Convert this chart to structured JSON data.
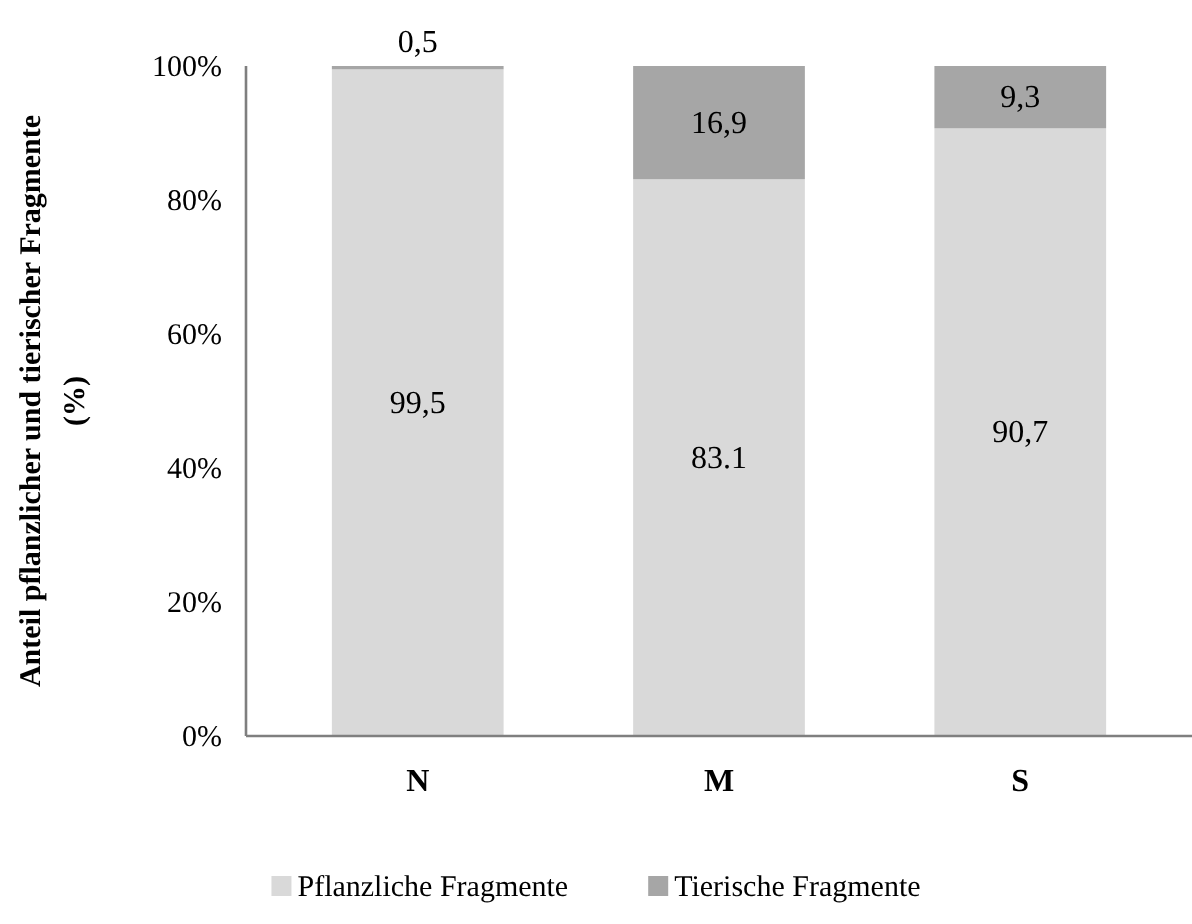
{
  "chart_data": {
    "type": "bar",
    "stacked": true,
    "ylabel": "Anteil pflanzlicher und tierischer Fragmente (%)",
    "categories": [
      "N",
      "M",
      "S"
    ],
    "ylim": [
      0,
      100
    ],
    "yticks": [
      {
        "value": 0,
        "label": "0%"
      },
      {
        "value": 20,
        "label": "20%"
      },
      {
        "value": 40,
        "label": "40%"
      },
      {
        "value": 60,
        "label": "60%"
      },
      {
        "value": 80,
        "label": "80%"
      },
      {
        "value": 100,
        "label": "100%"
      }
    ],
    "grid": false,
    "legend": "bottom",
    "series": [
      {
        "name": "Pflanzliche Fragmente",
        "color": "#d9d9d9",
        "values": [
          99.5,
          83.1,
          90.7
        ],
        "value_labels": [
          "99,5",
          "83.1",
          "90,7"
        ]
      },
      {
        "name": "Tierische Fragmente",
        "color": "#a6a6a6",
        "values": [
          0.5,
          16.9,
          9.3
        ],
        "value_labels": [
          "0,5",
          "16,9",
          "9,3"
        ]
      }
    ]
  }
}
